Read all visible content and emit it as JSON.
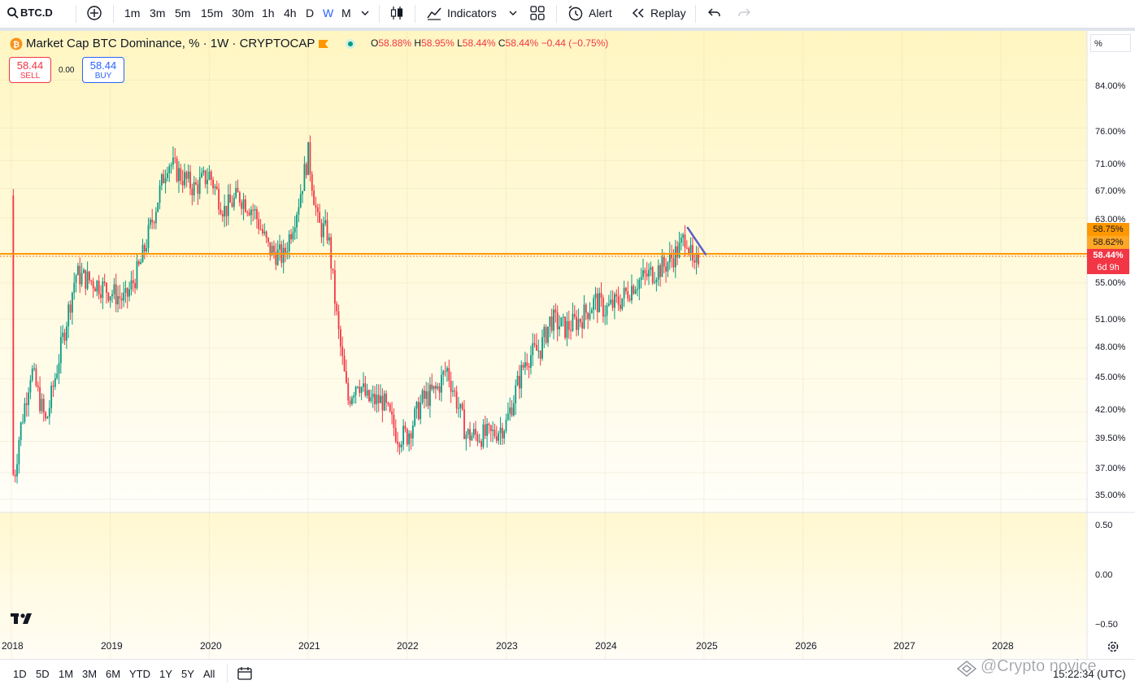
{
  "toolbar": {
    "symbol": "BTC.D",
    "intervals": [
      "1m",
      "3m",
      "5m",
      "15m",
      "30m",
      "1h",
      "4h",
      "D",
      "W",
      "M"
    ],
    "active_interval": "W",
    "indicators_label": "Indicators",
    "alert_label": "Alert",
    "replay_label": "Replay"
  },
  "legend": {
    "title": "Market Cap BTC Dominance, % · 1W · CRYPTOCAP",
    "open_key": "O",
    "open": "58.88%",
    "high_key": "H",
    "high": "58.95%",
    "low_key": "L",
    "low": "58.44%",
    "close_key": "C",
    "close": "58.44%",
    "change": "−0.44 (−0.75%)"
  },
  "trade": {
    "sell_price": "58.44",
    "sell_label": "SELL",
    "spread": "0.00",
    "buy_price": "58.44",
    "buy_label": "BUY"
  },
  "scale_button": "%",
  "price_tags": {
    "tag1": "58.75%",
    "tag2": "58.62%",
    "current": "58.44%",
    "countdown": "6d 9h"
  },
  "bottom": {
    "ranges": [
      "1D",
      "5D",
      "1M",
      "3M",
      "6M",
      "YTD",
      "1Y",
      "5Y",
      "All"
    ],
    "clock": "15:22:34 (UTC)",
    "watermark": "@Crypto novice"
  },
  "colors": {
    "up": "#089981",
    "down": "#f23645",
    "price_line": "#ff9800",
    "trendline": "#6a5acd",
    "bg_top": "#fff8cc",
    "active": "#2962ff"
  },
  "chart_data": {
    "type": "candlestick",
    "title": "Market Cap BTC Dominance, % · 1W · CRYPTOCAP",
    "y_scale": "log",
    "y_ticks": [
      "84.00%",
      "76.00%",
      "71.00%",
      "67.00%",
      "63.00%",
      "55.00%",
      "51.00%",
      "48.00%",
      "45.00%",
      "42.00%",
      "39.50%",
      "37.00%",
      "35.00%"
    ],
    "x_ticks": [
      "2018",
      "2019",
      "2020",
      "2021",
      "2022",
      "2023",
      "2024",
      "2025",
      "2026",
      "2027",
      "2028"
    ],
    "last_price": 58.44,
    "series_close": [
      {
        "t": 2018.0,
        "v": 66
      },
      {
        "t": 2018.02,
        "v": 36
      },
      {
        "t": 2018.08,
        "v": 40
      },
      {
        "t": 2018.2,
        "v": 46
      },
      {
        "t": 2018.35,
        "v": 41
      },
      {
        "t": 2018.5,
        "v": 48
      },
      {
        "t": 2018.65,
        "v": 56
      },
      {
        "t": 2018.85,
        "v": 55
      },
      {
        "t": 2019.0,
        "v": 54
      },
      {
        "t": 2019.15,
        "v": 53
      },
      {
        "t": 2019.3,
        "v": 57
      },
      {
        "t": 2019.45,
        "v": 64
      },
      {
        "t": 2019.58,
        "v": 71
      },
      {
        "t": 2019.7,
        "v": 69
      },
      {
        "t": 2019.85,
        "v": 67
      },
      {
        "t": 2020.0,
        "v": 69
      },
      {
        "t": 2020.15,
        "v": 64
      },
      {
        "t": 2020.3,
        "v": 66
      },
      {
        "t": 2020.45,
        "v": 64
      },
      {
        "t": 2020.6,
        "v": 59
      },
      {
        "t": 2020.75,
        "v": 58
      },
      {
        "t": 2020.9,
        "v": 65
      },
      {
        "t": 2021.0,
        "v": 72
      },
      {
        "t": 2021.1,
        "v": 62
      },
      {
        "t": 2021.2,
        "v": 61
      },
      {
        "t": 2021.3,
        "v": 50
      },
      {
        "t": 2021.4,
        "v": 43
      },
      {
        "t": 2021.5,
        "v": 45
      },
      {
        "t": 2021.6,
        "v": 43
      },
      {
        "t": 2021.75,
        "v": 43
      },
      {
        "t": 2021.9,
        "v": 40
      },
      {
        "t": 2022.0,
        "v": 40
      },
      {
        "t": 2022.15,
        "v": 43
      },
      {
        "t": 2022.3,
        "v": 44
      },
      {
        "t": 2022.4,
        "v": 46
      },
      {
        "t": 2022.5,
        "v": 43
      },
      {
        "t": 2022.6,
        "v": 40
      },
      {
        "t": 2022.7,
        "v": 40
      },
      {
        "t": 2022.85,
        "v": 40
      },
      {
        "t": 2023.0,
        "v": 41
      },
      {
        "t": 2023.1,
        "v": 44
      },
      {
        "t": 2023.2,
        "v": 47
      },
      {
        "t": 2023.35,
        "v": 48
      },
      {
        "t": 2023.45,
        "v": 51
      },
      {
        "t": 2023.6,
        "v": 50
      },
      {
        "t": 2023.75,
        "v": 51
      },
      {
        "t": 2023.9,
        "v": 53
      },
      {
        "t": 2024.0,
        "v": 52
      },
      {
        "t": 2024.15,
        "v": 53
      },
      {
        "t": 2024.3,
        "v": 55
      },
      {
        "t": 2024.45,
        "v": 56
      },
      {
        "t": 2024.6,
        "v": 57
      },
      {
        "t": 2024.75,
        "v": 59
      },
      {
        "t": 2024.82,
        "v": 61
      },
      {
        "t": 2024.9,
        "v": 56
      },
      {
        "t": 2024.95,
        "v": 58.44
      }
    ],
    "trendline": [
      {
        "t": 2024.83,
        "v": 61.8
      },
      {
        "t": 2025.02,
        "v": 58.3
      }
    ]
  }
}
